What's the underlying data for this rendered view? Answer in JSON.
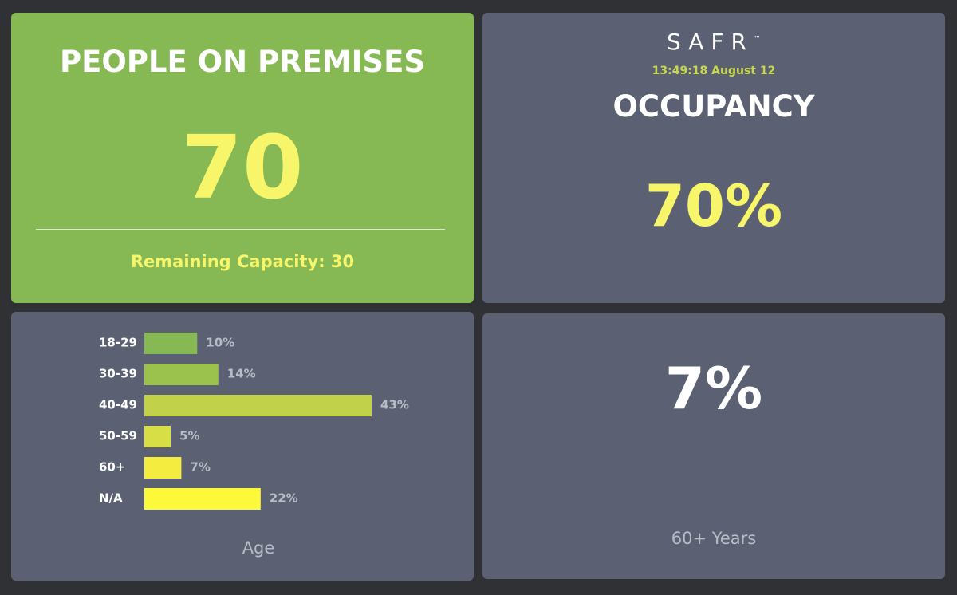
{
  "people_panel": {
    "title": "PEOPLE ON PREMISES",
    "count": "70",
    "remaining": "Remaining Capacity: 30"
  },
  "occupancy_panel": {
    "logo": "SAFR",
    "logo_tm": "™",
    "timestamp": "13:49:18 August 12",
    "title": "OCCUPANCY",
    "value": "70%"
  },
  "age_chart": {
    "type": "bar",
    "orientation": "horizontal",
    "xlabel": "Age",
    "categories": [
      "18-29",
      "30-39",
      "40-49",
      "50-59",
      "60+",
      "N/A"
    ],
    "values": [
      10,
      14,
      43,
      5,
      7,
      22
    ],
    "value_labels": [
      "10%",
      "14%",
      "43%",
      "5%",
      "7%",
      "22%"
    ],
    "colors": [
      "#86b853",
      "#9cc24e",
      "#c1d24a",
      "#d8df46",
      "#f4ec3e",
      "#fcf83a"
    ]
  },
  "senior_panel": {
    "value": "7%",
    "label": "60+ Years"
  }
}
